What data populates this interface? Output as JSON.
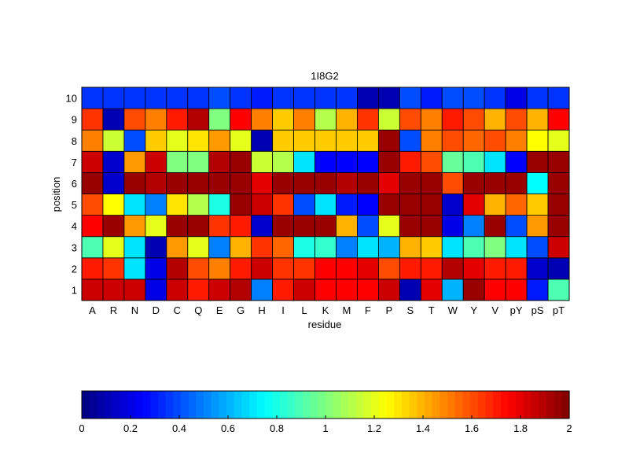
{
  "chart_data": [
    {
      "type": "heatmap",
      "title": "1I8G2",
      "xlabel": "residue",
      "ylabel": "position",
      "x_categories": [
        "A",
        "R",
        "N",
        "D",
        "C",
        "Q",
        "E",
        "G",
        "H",
        "I",
        "L",
        "K",
        "M",
        "F",
        "P",
        "S",
        "T",
        "W",
        "Y",
        "V",
        "pY",
        "pS",
        "pT"
      ],
      "y_categories": [
        "1",
        "2",
        "3",
        "4",
        "5",
        "6",
        "7",
        "8",
        "9",
        "10"
      ],
      "colormap": "jet",
      "value_range": [
        0,
        2
      ],
      "grid": true,
      "rows": [
        [
          1.85,
          1.85,
          1.85,
          0.2,
          1.85,
          1.7,
          1.85,
          1.9,
          0.5,
          1.7,
          1.85,
          1.75,
          1.75,
          1.75,
          1.85,
          0.1,
          1.8,
          0.6,
          1.95,
          1.75,
          1.75,
          0.3,
          0.9
        ],
        [
          1.7,
          1.65,
          0.7,
          0.2,
          1.9,
          1.6,
          1.5,
          1.7,
          1.85,
          1.65,
          1.65,
          1.75,
          1.75,
          1.8,
          1.6,
          1.7,
          1.7,
          1.9,
          1.8,
          1.7,
          1.7,
          0.15,
          0.1
        ],
        [
          0.9,
          1.2,
          0.7,
          0.1,
          1.45,
          1.2,
          0.5,
          1.4,
          1.65,
          1.55,
          0.8,
          0.85,
          0.5,
          0.7,
          0.6,
          1.4,
          1.35,
          0.7,
          0.9,
          1.0,
          0.7,
          0.4,
          1.85
        ],
        [
          1.75,
          1.95,
          1.45,
          1.2,
          1.95,
          1.95,
          1.65,
          1.7,
          0.15,
          1.95,
          1.95,
          1.95,
          1.4,
          0.4,
          1.2,
          1.95,
          1.95,
          0.2,
          0.5,
          1.95,
          0.4,
          1.45,
          1.95
        ],
        [
          1.6,
          1.25,
          0.7,
          0.5,
          1.3,
          1.1,
          0.8,
          1.95,
          1.85,
          1.65,
          0.4,
          0.7,
          0.3,
          0.25,
          1.95,
          1.95,
          1.95,
          0.15,
          1.8,
          1.4,
          1.55,
          1.35,
          1.95
        ],
        [
          1.95,
          0.15,
          1.95,
          1.9,
          1.95,
          1.95,
          1.95,
          1.95,
          1.8,
          1.95,
          1.95,
          1.95,
          1.9,
          1.95,
          1.8,
          1.95,
          1.95,
          1.6,
          1.95,
          1.95,
          1.95,
          0.75,
          1.95
        ],
        [
          1.85,
          0.15,
          1.45,
          1.85,
          1.0,
          1.0,
          1.9,
          1.95,
          1.15,
          1.1,
          0.7,
          0.25,
          0.25,
          0.25,
          1.95,
          1.7,
          1.6,
          0.95,
          0.9,
          0.7,
          0.25,
          1.95,
          1.95
        ],
        [
          1.5,
          1.15,
          0.4,
          1.35,
          1.2,
          1.3,
          1.45,
          1.2,
          0.1,
          1.35,
          1.35,
          1.35,
          1.35,
          1.35,
          1.95,
          0.4,
          1.5,
          1.6,
          1.55,
          1.6,
          1.5,
          1.25,
          1.2
        ],
        [
          1.65,
          0.1,
          1.6,
          1.5,
          1.7,
          1.9,
          1.0,
          1.75,
          1.5,
          1.35,
          1.5,
          1.1,
          1.4,
          1.65,
          1.15,
          1.6,
          1.5,
          1.7,
          1.6,
          1.4,
          1.6,
          1.4,
          1.75
        ],
        [
          0.35,
          0.35,
          0.35,
          0.35,
          0.35,
          0.35,
          0.4,
          0.35,
          0.3,
          0.35,
          0.35,
          0.35,
          0.35,
          0.1,
          0.1,
          0.4,
          0.3,
          0.4,
          0.4,
          0.35,
          0.2,
          0.35,
          0.35
        ]
      ]
    },
    {
      "type": "colorbar",
      "colormap": "jet",
      "range": [
        0,
        2
      ],
      "tick_labels": [
        "0",
        "0.2",
        "0.4",
        "0.6",
        "0.8",
        "1",
        "1.2",
        "1.4",
        "1.6",
        "1.8",
        "2"
      ]
    }
  ]
}
